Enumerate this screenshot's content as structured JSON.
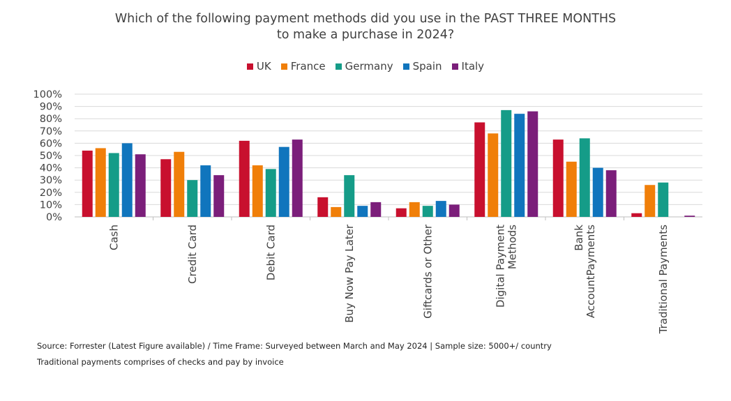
{
  "chart_data": {
    "type": "bar",
    "title_lines": [
      "Which of the following payment methods did you use in the PAST THREE MONTHS",
      "to make a purchase in 2024?"
    ],
    "categories": [
      [
        "Cash"
      ],
      [
        "Credit Card"
      ],
      [
        "Debit Card"
      ],
      [
        "Buy Now Pay Later"
      ],
      [
        "Giftcards or Other"
      ],
      [
        "Digital Payment",
        "Methods"
      ],
      [
        "Bank",
        "AccountPayments"
      ],
      [
        "Traditional Payments"
      ]
    ],
    "series": [
      {
        "name": "UK",
        "color": "#c8102e",
        "values": [
          54,
          47,
          62,
          16,
          7,
          77,
          63,
          3
        ]
      },
      {
        "name": "France",
        "color": "#f07f09",
        "values": [
          56,
          53,
          42,
          8,
          12,
          68,
          45,
          26
        ]
      },
      {
        "name": "Germany",
        "color": "#159c88",
        "values": [
          52,
          30,
          39,
          34,
          9,
          87,
          64,
          28
        ]
      },
      {
        "name": "Spain",
        "color": "#1075bd",
        "values": [
          60,
          42,
          57,
          9,
          13,
          84,
          40,
          0
        ]
      },
      {
        "name": "Italy",
        "color": "#7b1e7a",
        "values": [
          51,
          34,
          63,
          12,
          10,
          86,
          38,
          1
        ]
      }
    ],
    "ylim": [
      0,
      100
    ],
    "yticks": [
      "0%",
      "10%",
      "20%",
      "30%",
      "40%",
      "50%",
      "60%",
      "70%",
      "80%",
      "90%",
      "100%"
    ],
    "grid": true,
    "legend_position": "top-center"
  },
  "footnotes": {
    "source": "Source: Forrester (Latest Figure available) / Time Frame: Surveyed between March and May 2024 | Sample size: 5000+/ country",
    "note": "Traditional payments comprises of checks and pay by invoice"
  }
}
